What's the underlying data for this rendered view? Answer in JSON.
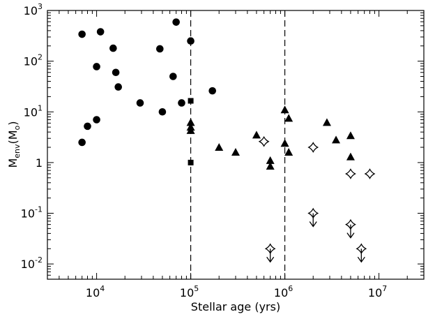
{
  "chart_data": {
    "type": "scatter",
    "xscale": "log",
    "yscale": "log",
    "xlim": [
      3000,
      30000000
    ],
    "ylim": [
      0.005,
      1000
    ],
    "xlabel": "Stellar age (yrs)",
    "ylabel": {
      "base": "M",
      "sub": "env",
      "open": "(M",
      "sub2": "o",
      "close": ")"
    },
    "x_ticks": [
      {
        "value": 10000,
        "base": "10",
        "exp": "4"
      },
      {
        "value": 100000,
        "base": "10",
        "exp": "5"
      },
      {
        "value": 1000000,
        "base": "10",
        "exp": "6"
      },
      {
        "value": 10000000,
        "base": "10",
        "exp": "7"
      }
    ],
    "y_ticks": [
      {
        "value": 0.01,
        "base": "10",
        "exp": "-2"
      },
      {
        "value": 0.1,
        "base": "10",
        "exp": "-1"
      },
      {
        "value": 1,
        "base": "1",
        "exp": ""
      },
      {
        "value": 10,
        "base": "10",
        "exp": "1"
      },
      {
        "value": 100,
        "base": "10",
        "exp": "2"
      },
      {
        "value": 1000,
        "base": "10",
        "exp": "3"
      }
    ],
    "vertical_lines": [
      100000,
      1000000
    ],
    "series": [
      {
        "marker": "circle",
        "points": [
          [
            7000,
            340
          ],
          [
            11000,
            380
          ],
          [
            15000,
            180
          ],
          [
            10000,
            78
          ],
          [
            16000,
            60
          ],
          [
            17000,
            31
          ],
          [
            7000,
            2.5
          ],
          [
            8000,
            5.2
          ],
          [
            10000,
            7
          ],
          [
            29000,
            15
          ],
          [
            47000,
            175
          ],
          [
            70000,
            590
          ],
          [
            100000,
            250
          ],
          [
            65000,
            50
          ],
          [
            50000,
            10
          ],
          [
            80000,
            15
          ],
          [
            170000,
            26
          ]
        ]
      },
      {
        "marker": "square",
        "points": [
          [
            100000,
            16.5
          ],
          [
            100000,
            1.0
          ]
        ]
      },
      {
        "marker": "triangle",
        "points": [
          [
            100000,
            6.2
          ],
          [
            100000,
            5.0
          ],
          [
            100000,
            4.3
          ],
          [
            200000,
            2.0
          ],
          [
            300000,
            1.6
          ],
          [
            500000,
            3.5
          ],
          [
            700000,
            1.1
          ],
          [
            700000,
            0.85
          ],
          [
            1000000,
            11
          ],
          [
            1100000,
            7.5
          ],
          [
            1000000,
            2.4
          ],
          [
            1100000,
            1.6
          ],
          [
            2800000,
            6.2
          ],
          [
            3500000,
            2.8
          ],
          [
            5000000,
            3.4
          ],
          [
            5000000,
            1.3
          ]
        ]
      },
      {
        "marker": "star",
        "points": [
          [
            600000,
            2.6
          ],
          [
            2000000,
            2.0
          ],
          [
            5000000,
            0.6
          ],
          [
            8000000,
            0.6
          ]
        ]
      },
      {
        "marker": "star-upper-limit",
        "points": [
          [
            700000,
            0.02
          ],
          [
            2000000,
            0.1
          ],
          [
            5000000,
            0.06
          ],
          [
            6500000,
            0.02
          ]
        ]
      }
    ]
  }
}
